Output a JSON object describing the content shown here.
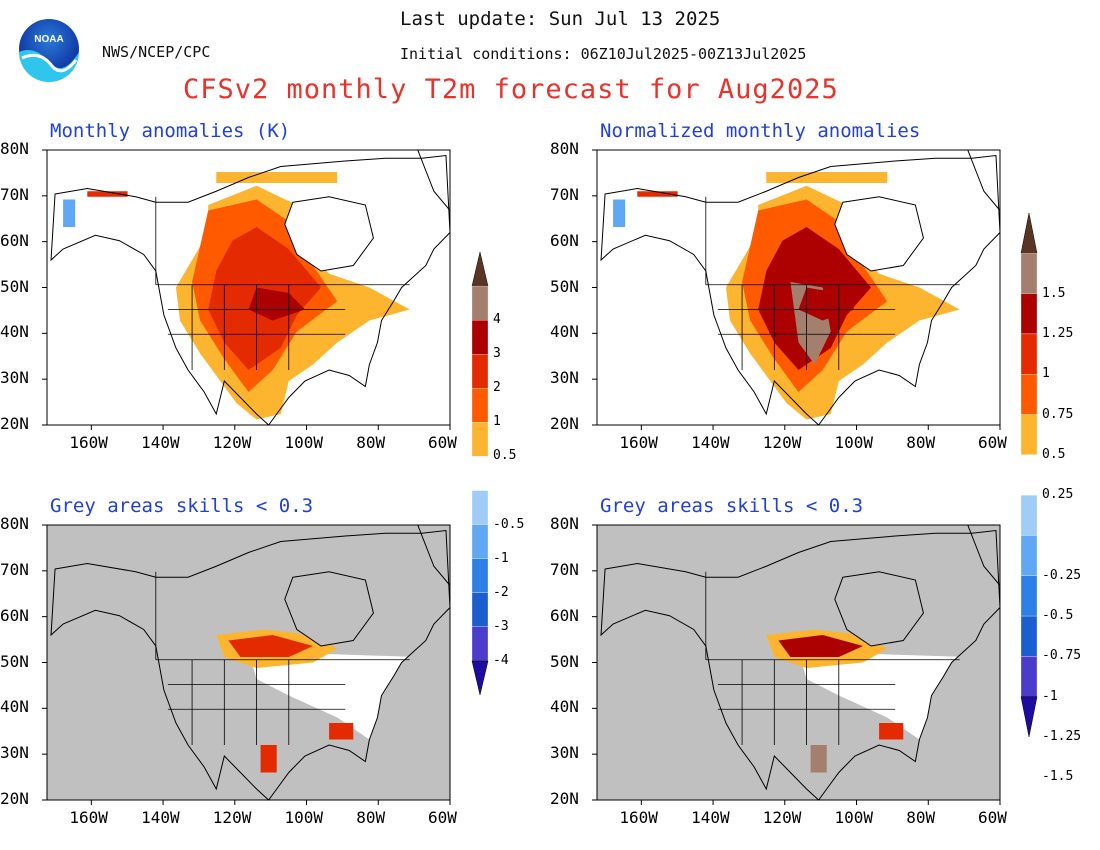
{
  "header": {
    "agency": "NWS/NCEP/CPC",
    "logo_text": "NOAA",
    "last_update": "Last update: Sun Jul 13 2025",
    "initial_conditions": "Initial conditions: 06Z10Jul2025-00Z13Jul2025",
    "title": "CFSv2 monthly T2m forecast for Aug2025"
  },
  "panels": {
    "tl_title": "Monthly anomalies (K)",
    "tr_title": "Normalized monthly anomalies",
    "bl_title": "Grey areas skills < 0.3",
    "br_title": "Grey areas skills < 0.3"
  },
  "axes": {
    "lat_labels": [
      "80N",
      "70N",
      "60N",
      "50N",
      "40N",
      "30N",
      "20N"
    ],
    "lon_labels": [
      "160W",
      "140W",
      "120W",
      "100W",
      "80W",
      "60W"
    ]
  },
  "colorbar_left": {
    "labels": [
      "4",
      "3",
      "2",
      "1",
      "0.5",
      "-0.5",
      "-1",
      "-2",
      "-3",
      "-4"
    ],
    "colors": [
      "#5a3526",
      "#a47f6e",
      "#ad0000",
      "#e42a00",
      "#ff5a00",
      "#fdb52f",
      "#ffffff",
      "#9fcdf7",
      "#60a8f3",
      "#2e7fe6",
      "#1a5ed0",
      "#4b3ccc",
      "#1e0ba0"
    ]
  },
  "colorbar_right": {
    "labels": [
      "1.5",
      "1.25",
      "1",
      "0.75",
      "0.5",
      "0.25",
      "-0.25",
      "-0.5",
      "-0.75",
      "-1",
      "-1.25",
      "-1.5"
    ],
    "colors": [
      "#5a3526",
      "#a47f6e",
      "#ad0000",
      "#e42a00",
      "#ff5a00",
      "#fdb52f",
      "#ffffff",
      "#9fcdf7",
      "#60a8f3",
      "#2e7fe6",
      "#1a5ed0",
      "#4b3ccc",
      "#1e0ba0"
    ]
  },
  "colors": {
    "title": "#e8322a",
    "subtitle": "#1f3fe0",
    "grey": "#c0c0c0",
    "warm1": "#fdb52f",
    "warm2": "#ff5a00",
    "warm3": "#e42a00",
    "warm4": "#ad0000",
    "warm5": "#a47f6e",
    "cool1": "#9fcdf7",
    "cool2": "#60a8f3"
  }
}
